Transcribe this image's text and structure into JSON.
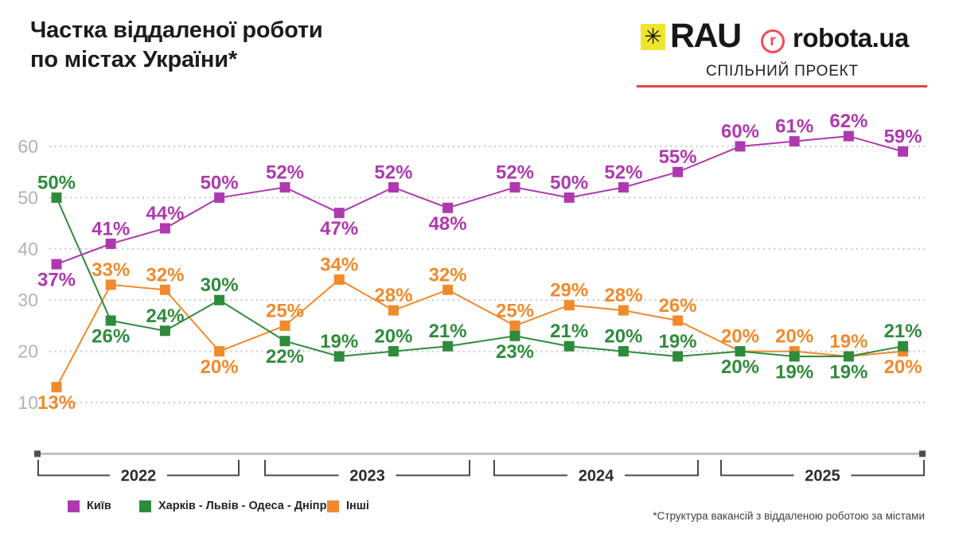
{
  "header": {
    "title_line1": "Частка віддаленої роботи",
    "title_line2": "по містах України*",
    "partner_block": {
      "rau_star_icon": "✳",
      "rau_text": "RAU",
      "robota_r": "r",
      "robota_text": "robota.ua",
      "subtitle": "СПІЛЬНИЙ ПРОЕКТ"
    }
  },
  "footnote": "*Структура вакансій з віддаленою роботою за містами",
  "colors": {
    "kyiv_purple": "#ae39ae",
    "cities_green": "#2f8b3c",
    "others_orange": "#f18a2b",
    "rau_yellow": "#f0e42f",
    "robota_red": "#f34b57",
    "underline_red": "#ec404d",
    "grid_gray": "#c9c9ce",
    "tick_gray": "#b2b2b7",
    "axis_gray": "#bdbdbd",
    "bracket_dark": "#4a4a4a",
    "text_dark": "#1c1c1f"
  },
  "chart_data": {
    "type": "line",
    "title": "Частка віддаленої роботи по містах України*",
    "unit": "%",
    "x_groups": [
      "2022",
      "2023",
      "2024",
      "2025"
    ],
    "points_per_group": 4,
    "y_ticks": [
      60,
      50,
      40,
      30,
      20,
      10
    ],
    "ylim": [
      5,
      66
    ],
    "grid": "horizontal-dotted",
    "legend_position": "bottom-left",
    "series": [
      {
        "name": "Інші",
        "color": "#f18a2b",
        "values": [
          13,
          33,
          32,
          20,
          25,
          34,
          28,
          32,
          25,
          29,
          28,
          26,
          20,
          20,
          19,
          20
        ],
        "label_positions": [
          "below",
          "above",
          "above",
          "below",
          "above",
          "above",
          "above",
          "above",
          "above",
          "above",
          "above",
          "above",
          "above",
          "above",
          "above",
          "below"
        ]
      },
      {
        "name": "Харків - Львів - Одеса - Дніпро",
        "color": "#2f8b3c",
        "values": [
          50,
          26,
          24,
          30,
          22,
          19,
          20,
          21,
          23,
          21,
          20,
          19,
          20,
          19,
          19,
          21
        ],
        "label_positions": [
          "above",
          "below",
          "above",
          "above",
          "below",
          "above",
          "above",
          "above",
          "below",
          "above",
          "above",
          "above",
          "below",
          "below",
          "below",
          "above"
        ]
      },
      {
        "name": "Київ",
        "color": "#ae39ae",
        "values": [
          37,
          41,
          44,
          50,
          52,
          47,
          52,
          48,
          52,
          50,
          52,
          55,
          60,
          61,
          62,
          59
        ],
        "label_positions": [
          "below",
          "above",
          "above",
          "above",
          "above",
          "below",
          "above",
          "below",
          "above",
          "above",
          "above",
          "above",
          "above",
          "above",
          "above",
          "above"
        ]
      }
    ]
  },
  "legend": [
    {
      "label": "Київ",
      "color": "#ae39ae"
    },
    {
      "label": "Харків - Львів - Одеса - Дніпро",
      "color": "#2f8b3c"
    },
    {
      "label": "Інші",
      "color": "#f18a2b"
    }
  ]
}
